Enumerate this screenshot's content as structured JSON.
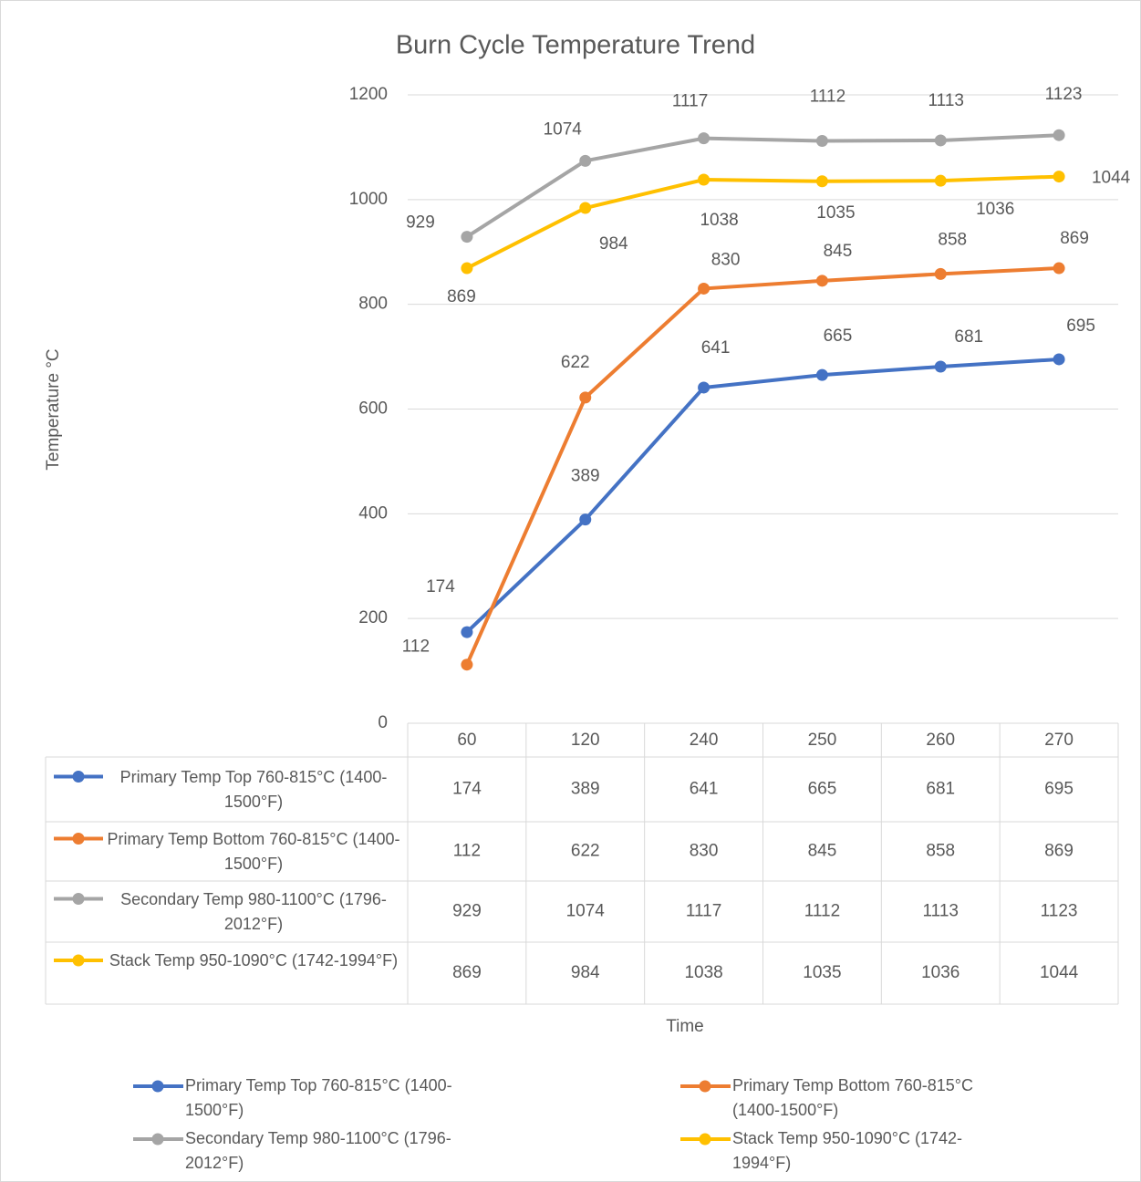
{
  "chart_data": {
    "type": "line",
    "title": "Burn Cycle Temperature Trend",
    "x_label": "Time",
    "y_label": "Temperature °C",
    "categories": [
      "60",
      "120",
      "240",
      "250",
      "260",
      "270"
    ],
    "series": [
      {
        "name": "Primary Temp Top 760-815°C (1400-1500°F)",
        "color": "#4472c4",
        "values": [
          174,
          389,
          641,
          665,
          681,
          695
        ]
      },
      {
        "name": "Primary Temp Bottom 760-815°C (1400-1500°F)",
        "color": "#ed7d31",
        "values": [
          112,
          622,
          830,
          845,
          858,
          869
        ]
      },
      {
        "name": "Secondary Temp 980-1100°C (1796-2012°F)",
        "color": "#a5a5a5",
        "values": [
          929,
          1074,
          1117,
          1112,
          1113,
          1123
        ]
      },
      {
        "name": "Stack Temp 950-1090°C (1742-1994°F)",
        "color": "#ffc000",
        "values": [
          869,
          984,
          1038,
          1035,
          1036,
          1044
        ]
      }
    ],
    "ylim": [
      0,
      1200
    ],
    "yticks": [
      0,
      200,
      400,
      600,
      800,
      1000,
      1200
    ],
    "grid": true,
    "data_table": true,
    "legend": "bottom"
  }
}
